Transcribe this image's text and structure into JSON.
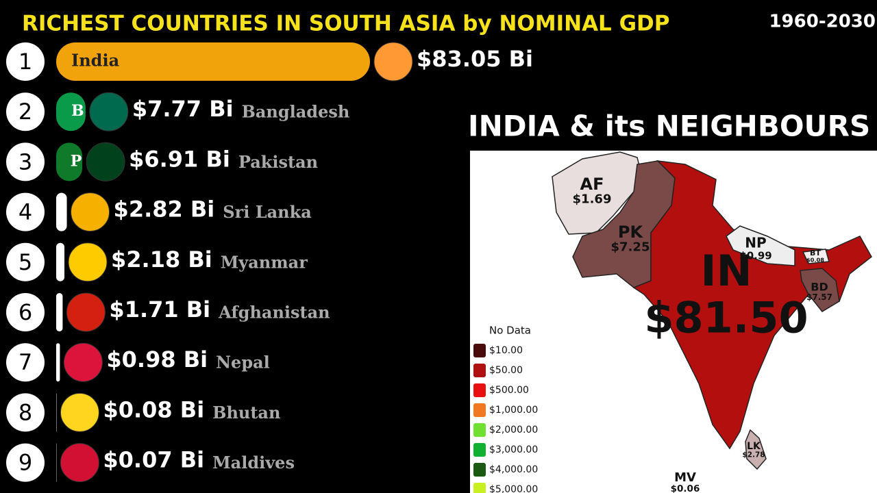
{
  "chart_data": {
    "type": "bar",
    "orientation": "horizontal",
    "title": "RICHEST COUNTRIES IN SOUTH ASIA by NOMINAL GDP",
    "subtitle": "1960-2030",
    "ranks": [
      1,
      2,
      3,
      4,
      5,
      6,
      7,
      8,
      9
    ],
    "categories": [
      "India",
      "Bangladesh",
      "Pakistan",
      "Sri Lanka",
      "Myanmar",
      "Afghanistan",
      "Nepal",
      "Bhutan",
      "Maldives"
    ],
    "bar_labels": [
      null,
      "B",
      "P",
      null,
      null,
      null,
      null,
      null,
      null
    ],
    "values": [
      83.05,
      7.77,
      6.91,
      2.82,
      2.18,
      1.71,
      0.98,
      0.08,
      0.07
    ],
    "value_labels": [
      "$83.05 Bi",
      "$7.77 Bi",
      "$6.91 Bi",
      "$2.82 Bi",
      "$2.18 Bi",
      "$1.71 Bi",
      "$0.98 Bi",
      "$0.08 Bi",
      "$0.07 Bi"
    ],
    "colors": [
      "#f0a30a",
      "#0a9b4a",
      "#0f7a2a",
      "#ffffff",
      "#ffffff",
      "#ffffff",
      "#ffffff",
      "#ffffff",
      "#ffffff"
    ],
    "flag_colors": [
      "#ff9933",
      "#006a4e",
      "#01411c",
      "#f5b000",
      "#fecb00",
      "#d32011",
      "#dc143c",
      "#ffd520",
      "#d21034"
    ]
  },
  "map": {
    "title": "INDIA & its NEIGHBOURS",
    "regions": [
      {
        "label": "AF",
        "value_label": "$1.69"
      },
      {
        "label": "PK",
        "value_label": "$7.25"
      },
      {
        "label": "NP",
        "value_label": "$0.99"
      },
      {
        "label": "BT",
        "value_label": "$0.08"
      },
      {
        "label": "BD",
        "value_label": "$7.57"
      },
      {
        "label": "IN",
        "value_label": "$81.50"
      },
      {
        "label": "LK",
        "value_label": "$2.78"
      },
      {
        "label": "MV",
        "value_label": "$0.06"
      }
    ],
    "legend": [
      "No Data",
      "$10.00",
      "$50.00",
      "$500.00",
      "$1,000.00",
      "$2,000.00",
      "$3,000.00",
      "$4,000.00",
      "$5,000.00"
    ],
    "legend_colors": [
      null,
      "#4a0a0a",
      "#b01010",
      "#e81010",
      "#f07820",
      "#70e030",
      "#10b030",
      "#1a5a10",
      "#c8f020"
    ]
  }
}
